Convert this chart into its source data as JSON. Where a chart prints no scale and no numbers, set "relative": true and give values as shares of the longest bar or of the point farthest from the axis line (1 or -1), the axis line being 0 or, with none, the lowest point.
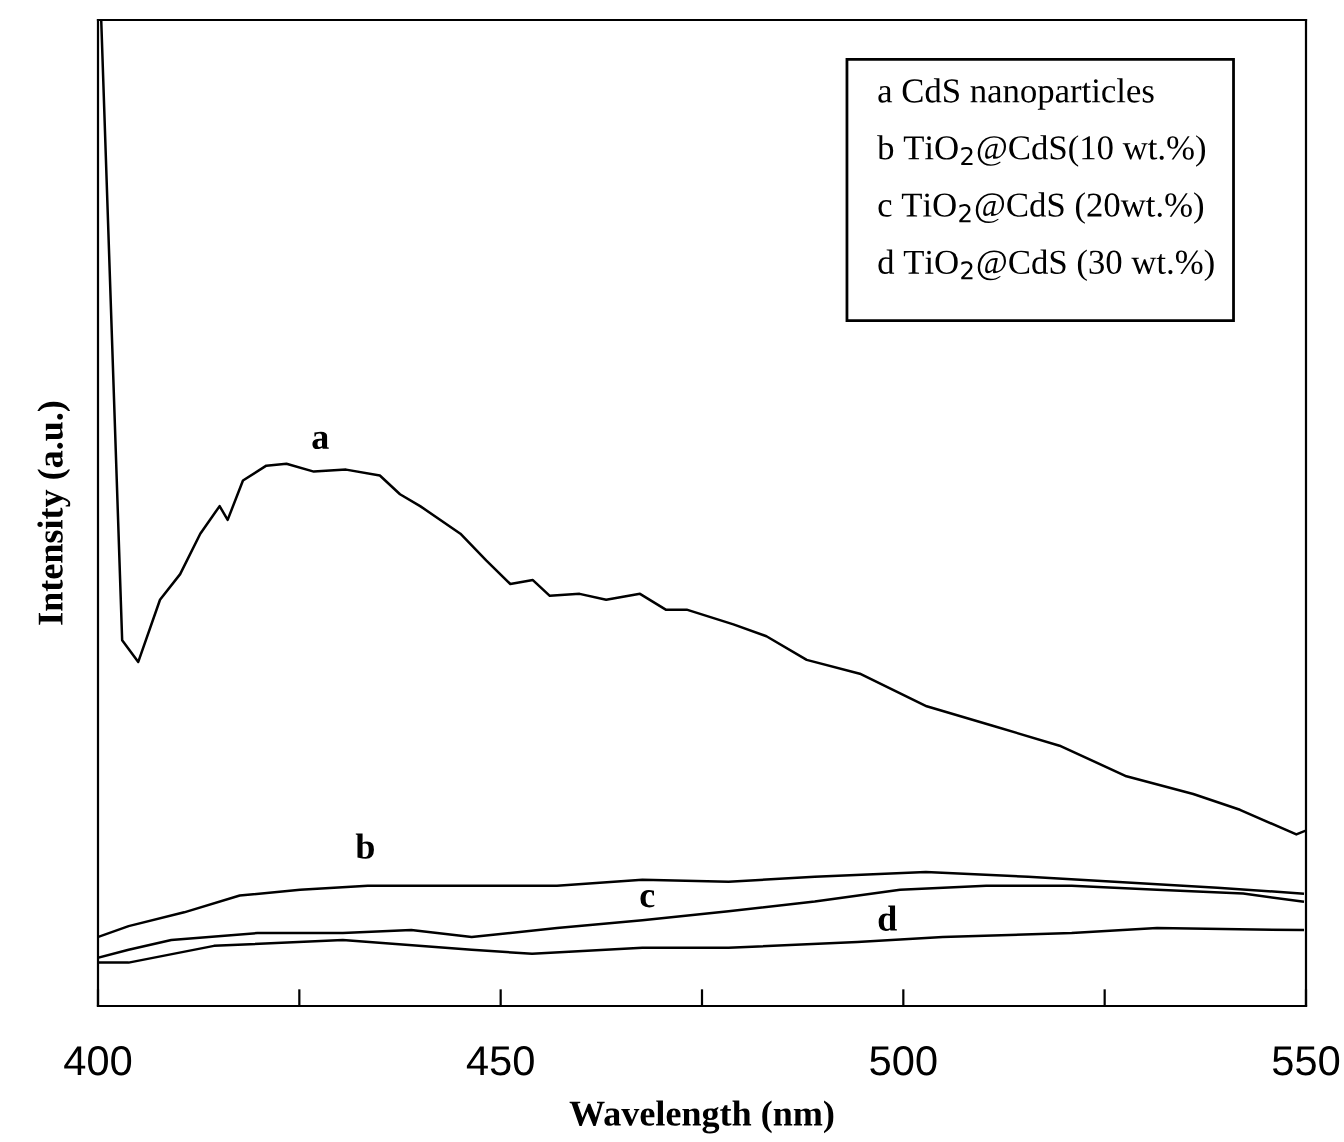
{
  "chart_data": {
    "type": "line",
    "relative": true,
    "xlabel": "Wavelength (nm)",
    "ylabel": "Intensity (a.u.)",
    "xlim": [
      400,
      550
    ],
    "xticks": [
      400,
      {
        "value": 425,
        "label": null
      },
      450,
      {
        "value": 475,
        "label": null
      },
      500,
      {
        "value": 525,
        "label": null
      },
      550
    ],
    "grid": false,
    "series": [
      {
        "name": "a",
        "color": "#000000",
        "x": [
          400.4,
          403,
          405,
          407.7,
          410.2,
          412.7,
          415.1,
          416.1,
          418,
          420.9,
          423.4,
          426.8,
          430.8,
          435,
          437.5,
          440,
          445,
          448.2,
          451.2,
          454,
          456.1,
          459.8,
          463.1,
          467.3,
          470.5,
          473.1,
          478.9,
          483,
          488,
          494.6,
          502.9,
          511.2,
          519.4,
          527.7,
          536,
          541.8,
          548.8,
          550
        ],
        "values": [
          1.0,
          0.371,
          0.349,
          0.412,
          0.438,
          0.479,
          0.507,
          0.493,
          0.533,
          0.548,
          0.55,
          0.542,
          0.544,
          0.538,
          0.519,
          0.507,
          0.479,
          0.452,
          0.428,
          0.432,
          0.416,
          0.418,
          0.412,
          0.418,
          0.402,
          0.402,
          0.387,
          0.375,
          0.351,
          0.337,
          0.304,
          0.284,
          0.264,
          0.233,
          0.215,
          0.199,
          0.174,
          0.178
        ]
      },
      {
        "name": "b",
        "color": "#000000",
        "x": [
          400,
          403.8,
          410.7,
          417.6,
          425.1,
          433.5,
          446.4,
          457,
          467.6,
          478.3,
          489,
          502.8,
          515.5,
          526.2,
          539,
          549.6
        ],
        "values": [
          0.07,
          0.081,
          0.095,
          0.112,
          0.118,
          0.122,
          0.122,
          0.122,
          0.128,
          0.126,
          0.131,
          0.136,
          0.131,
          0.126,
          0.12,
          0.114
        ]
      },
      {
        "name": "c",
        "color": "#000000",
        "x": [
          400,
          403.8,
          409.1,
          419.8,
          430.4,
          438.9,
          446.4,
          457,
          467.6,
          478.3,
          489,
          499.6,
          510.3,
          520.9,
          531.5,
          542.2,
          549.6
        ],
        "values": [
          0.049,
          0.057,
          0.067,
          0.074,
          0.074,
          0.077,
          0.07,
          0.079,
          0.087,
          0.096,
          0.106,
          0.118,
          0.122,
          0.122,
          0.118,
          0.114,
          0.106
        ]
      },
      {
        "name": "d",
        "color": "#000000",
        "x": [
          400,
          403.8,
          414.4,
          430.4,
          446.4,
          453.9,
          467.6,
          478.3,
          494.3,
          504.9,
          520.9,
          531.5,
          549.6
        ],
        "values": [
          0.044,
          0.044,
          0.061,
          0.067,
          0.057,
          0.053,
          0.059,
          0.059,
          0.065,
          0.07,
          0.074,
          0.079,
          0.077
        ]
      }
    ],
    "annotations": [
      "a CdS nanoparticles",
      "b TiO$_{2}$@CdS(10 wt.%)",
      "c TiO$_{2}$@CdS (20wt.%)",
      "d TiO$_{2}$@CdS (30 wt.%)"
    ]
  }
}
